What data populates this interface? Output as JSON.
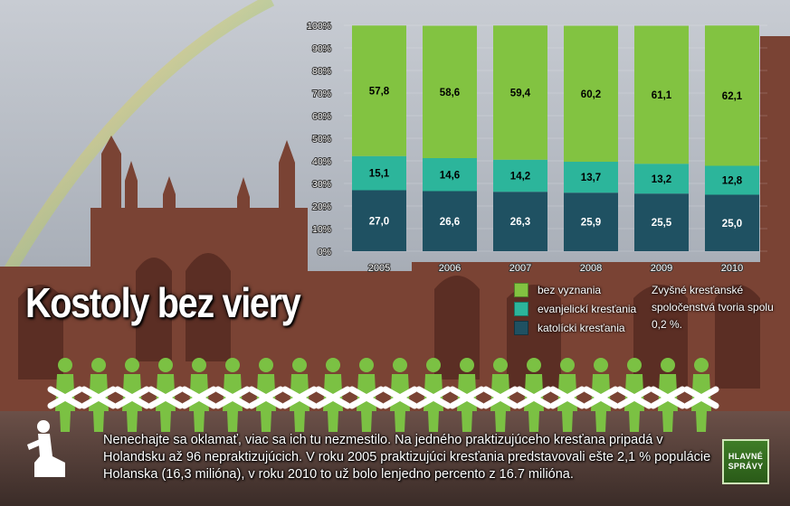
{
  "chart_data": {
    "type": "bar",
    "stacked": true,
    "categories": [
      "2005",
      "2006",
      "2007",
      "2008",
      "2009",
      "2010"
    ],
    "series": [
      {
        "name": "katolícki kresťania",
        "values": [
          27.0,
          26.6,
          26.3,
          25.9,
          25.5,
          25.0
        ],
        "labels": [
          "27,0",
          "26,6",
          "26,3",
          "25,9",
          "25,5",
          "25,0"
        ],
        "color": "#1f5162"
      },
      {
        "name": "evanjelickí kresťania",
        "values": [
          15.1,
          14.6,
          14.2,
          13.7,
          13.2,
          12.8
        ],
        "labels": [
          "15,1",
          "14,6",
          "14,2",
          "13,7",
          "13,2",
          "12,8"
        ],
        "color": "#2cb59b"
      },
      {
        "name": "bez vyznania",
        "values": [
          57.8,
          58.6,
          59.4,
          60.2,
          61.1,
          62.1
        ],
        "labels": [
          "57,8",
          "58,6",
          "59,4",
          "60,2",
          "61,1",
          "62,1"
        ],
        "color": "#82c341"
      }
    ],
    "y_ticks": [
      "0%",
      "10%",
      "20%",
      "30%",
      "40%",
      "50%",
      "60%",
      "70%",
      "80%",
      "90%",
      "100%"
    ],
    "ylim": [
      0,
      100
    ],
    "grid": true,
    "legend_position": "bottom-right",
    "plot_background": "#ffffff",
    "label_color": "#000000"
  },
  "legend": {
    "items": [
      {
        "label": "bez vyznania",
        "color": "#82c341"
      },
      {
        "label": "evanjelickí kresťania",
        "color": "#2cb59b"
      },
      {
        "label": "katolícki kresťania",
        "color": "#1f5162"
      }
    ],
    "note": "Zvyšné kresťanské spoločenstvá tvoria spolu 0,2 %."
  },
  "headline": "Kostoly bez viery",
  "caption": "Nenechajte sa oklamať, viac sa ich tu nezmestilo. Na jedného praktizujúceho kresťana pripadá v Holandsku až 96 nepraktizujúcich. V roku 2005 praktizujúci kresťania predstavovali ešte 2,1 % populácie Holanska (16,3 milióna), v roku 2010 to už bolo lenjedno percento z 16.7 milióna.",
  "logo": {
    "line1": "HLAVNÉ",
    "line2": "SPRÁVY"
  },
  "colors": {
    "figure_green": "#7bc143",
    "figure_white": "#ffffff",
    "stone": "#6e3a2a"
  }
}
